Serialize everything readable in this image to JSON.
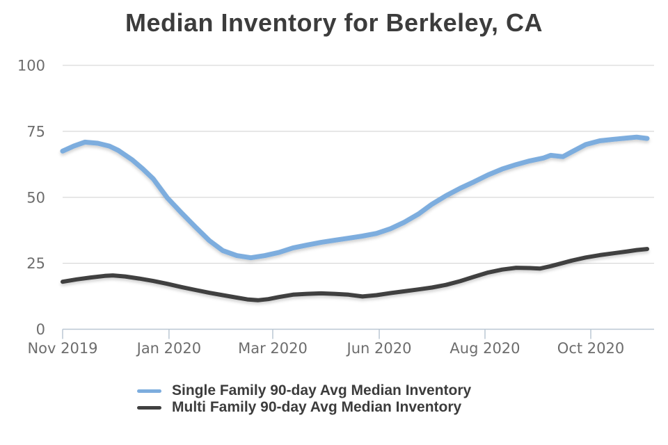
{
  "title": "Median Inventory for Berkeley, CA",
  "colors": {
    "background": "#ffffff",
    "gridline": "#d9d9d9",
    "axis_line": "#bac7d3",
    "tick_label": "#6d6d6d",
    "title_text": "#3c3c3c",
    "legend_text": "#3c3c3c",
    "single_family_line": "#7dadde",
    "multi_family_line": "#404040"
  },
  "chart_data": {
    "type": "line",
    "title": "Median Inventory for Berkeley, CA",
    "xlabel": "",
    "ylabel": "",
    "ylim": [
      0,
      100
    ],
    "y_ticks": [
      0,
      25,
      50,
      75,
      100
    ],
    "y_tick_labels": [
      "0",
      "25",
      "50",
      "75",
      "100"
    ],
    "x_tick_labels": [
      "Nov 2019",
      "Jan 2020",
      "Mar 2020",
      "Jun 2020",
      "Aug 2020",
      "Oct 2020"
    ],
    "x_tick_positions_pct": [
      0,
      18.2,
      35.95,
      54.17,
      72.26,
      90.36
    ],
    "grid": "horizontal-only",
    "legend_position": "bottom-left-indented",
    "series": [
      {
        "name": "Single Family 90-day Avg Median Inventory",
        "color": "#7dadde",
        "points_pct_value": [
          [
            0,
            67.5
          ],
          [
            1.9,
            69.4
          ],
          [
            3.8,
            70.9
          ],
          [
            6.0,
            70.5
          ],
          [
            8.0,
            69.4
          ],
          [
            9.5,
            67.8
          ],
          [
            11.9,
            64.2
          ],
          [
            13.7,
            60.8
          ],
          [
            15.5,
            57.0
          ],
          [
            17.9,
            49.8
          ],
          [
            20.3,
            44.2
          ],
          [
            22.7,
            38.8
          ],
          [
            25.1,
            33.6
          ],
          [
            27.4,
            29.8
          ],
          [
            29.8,
            27.9
          ],
          [
            32.2,
            27.1
          ],
          [
            34.6,
            27.9
          ],
          [
            37.0,
            29.1
          ],
          [
            39.4,
            30.8
          ],
          [
            41.8,
            31.9
          ],
          [
            44.2,
            32.9
          ],
          [
            46.5,
            33.7
          ],
          [
            48.9,
            34.5
          ],
          [
            51.3,
            35.3
          ],
          [
            53.7,
            36.3
          ],
          [
            56.1,
            38.1
          ],
          [
            58.5,
            40.6
          ],
          [
            60.9,
            43.7
          ],
          [
            63.2,
            47.4
          ],
          [
            65.6,
            50.6
          ],
          [
            68.0,
            53.4
          ],
          [
            70.4,
            55.9
          ],
          [
            72.8,
            58.5
          ],
          [
            75.2,
            60.7
          ],
          [
            77.6,
            62.4
          ],
          [
            79.9,
            63.8
          ],
          [
            82.3,
            64.9
          ],
          [
            83.5,
            65.9
          ],
          [
            85.6,
            65.4
          ],
          [
            87.1,
            67.2
          ],
          [
            89.5,
            70.0
          ],
          [
            91.9,
            71.4
          ],
          [
            94.3,
            72.0
          ],
          [
            96.7,
            72.5
          ],
          [
            98.2,
            72.8
          ],
          [
            100,
            72.3
          ]
        ]
      },
      {
        "name": "Multi Family 90-day Avg Median Inventory",
        "color": "#404040",
        "points_pct_value": [
          [
            0,
            18.0
          ],
          [
            2.4,
            18.9
          ],
          [
            4.8,
            19.6
          ],
          [
            7.2,
            20.2
          ],
          [
            8.6,
            20.4
          ],
          [
            10.7,
            20.0
          ],
          [
            13.1,
            19.2
          ],
          [
            15.5,
            18.3
          ],
          [
            17.9,
            17.2
          ],
          [
            20.3,
            16.0
          ],
          [
            22.7,
            14.9
          ],
          [
            25.1,
            13.8
          ],
          [
            27.4,
            12.9
          ],
          [
            29.8,
            12.0
          ],
          [
            31.6,
            11.3
          ],
          [
            33.4,
            11.0
          ],
          [
            35.2,
            11.4
          ],
          [
            37.0,
            12.2
          ],
          [
            39.4,
            13.1
          ],
          [
            41.8,
            13.4
          ],
          [
            44.2,
            13.6
          ],
          [
            46.5,
            13.4
          ],
          [
            48.9,
            13.1
          ],
          [
            51.3,
            12.4
          ],
          [
            53.7,
            12.9
          ],
          [
            56.1,
            13.7
          ],
          [
            58.5,
            14.4
          ],
          [
            60.9,
            15.1
          ],
          [
            63.2,
            15.8
          ],
          [
            65.6,
            16.8
          ],
          [
            68.0,
            18.2
          ],
          [
            70.4,
            19.9
          ],
          [
            72.8,
            21.5
          ],
          [
            75.2,
            22.6
          ],
          [
            77.6,
            23.3
          ],
          [
            79.9,
            23.2
          ],
          [
            81.7,
            23.0
          ],
          [
            83.5,
            23.9
          ],
          [
            85.6,
            25.1
          ],
          [
            87.1,
            26.0
          ],
          [
            89.5,
            27.2
          ],
          [
            91.9,
            28.1
          ],
          [
            94.3,
            28.8
          ],
          [
            96.7,
            29.5
          ],
          [
            98.2,
            30.0
          ],
          [
            100,
            30.4
          ]
        ]
      }
    ]
  },
  "legend": {
    "items": [
      {
        "label": "Single Family 90-day Avg Median Inventory"
      },
      {
        "label": "Multi Family 90-day Avg Median Inventory"
      }
    ]
  }
}
